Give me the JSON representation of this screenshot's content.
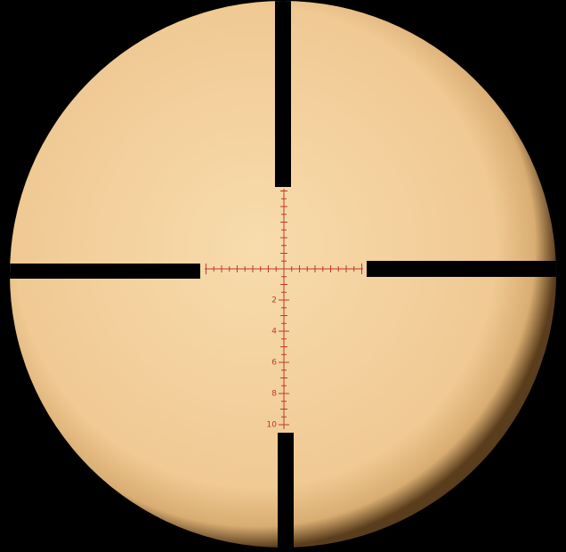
{
  "reticle": {
    "labels": [
      "2",
      "4",
      "6",
      "8",
      "10"
    ]
  }
}
